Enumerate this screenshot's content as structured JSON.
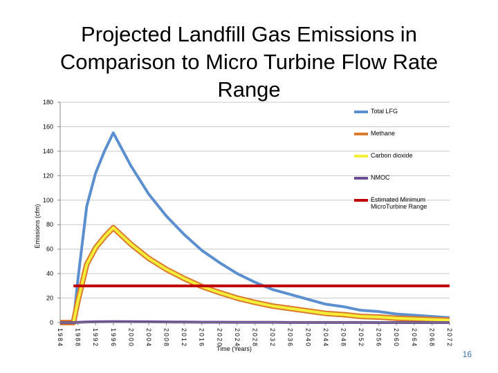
{
  "title": "Projected Landfill Gas Emissions in Comparison to Micro Turbine Flow Rate Range",
  "page_number": "16",
  "chart_data": {
    "type": "line",
    "y_label": "Emissions (cfm)",
    "x_label": "Time (Years)",
    "x": [
      1984,
      1987,
      1988,
      1990,
      1992,
      1994,
      1996,
      2000,
      2004,
      2008,
      2012,
      2016,
      2020,
      2024,
      2028,
      2032,
      2036,
      2040,
      2044,
      2048,
      2052,
      2056,
      2060,
      2064,
      2068,
      2072
    ],
    "series": [
      {
        "name": "Total LFG",
        "color": "#5b8fd0",
        "values": [
          0,
          0,
          35,
          95,
          122,
          140,
          155,
          128,
          105,
          87,
          72,
          59,
          49,
          40,
          33,
          27,
          23,
          19,
          15,
          13,
          10,
          9,
          7,
          6,
          5,
          4
        ]
      },
      {
        "name": "Methane",
        "color": "#d97b2b",
        "values": [
          0,
          0,
          17.5,
          47.5,
          61,
          70,
          77.5,
          64,
          52.5,
          43.5,
          36,
          29.5,
          24.5,
          20,
          16.5,
          13.5,
          11.5,
          9.5,
          7.5,
          6.5,
          5,
          4.5,
          3.5,
          3,
          2.5,
          2
        ]
      },
      {
        "name": "Carbon dioxide",
        "color": "#f5ef3a",
        "values": [
          0,
          0,
          17.5,
          47.5,
          61,
          70,
          77.5,
          64,
          52.5,
          43.5,
          36,
          29.5,
          24.5,
          20,
          16.5,
          13.5,
          11.5,
          9.5,
          7.5,
          6.5,
          5,
          4.5,
          3.5,
          3,
          2.5,
          2
        ]
      },
      {
        "name": "NMOC",
        "color": "#6a4c93",
        "values": [
          0,
          0,
          0.2,
          0.5,
          0.6,
          0.7,
          0.8,
          0.7,
          0.6,
          0.5,
          0.4,
          0.3,
          0.3,
          0.2,
          0.2,
          0.2,
          0.1,
          0.1,
          0.1,
          0.1,
          0.1,
          0,
          0,
          0,
          0,
          0
        ]
      },
      {
        "name": "Estimated Minimum MicroTurbine Range",
        "color": "#c00000",
        "values": [
          null,
          30,
          30,
          30,
          30,
          30,
          30,
          30,
          30,
          30,
          30,
          30,
          30,
          30,
          30,
          30,
          30,
          30,
          30,
          30,
          30,
          30,
          30,
          30,
          30,
          30
        ]
      }
    ],
    "xlim": [
      1984,
      2072
    ],
    "xticks": [
      1984,
      1988,
      1992,
      1996,
      2000,
      2004,
      2008,
      2012,
      2016,
      2020,
      2024,
      2028,
      2032,
      2036,
      2040,
      2044,
      2048,
      2052,
      2056,
      2060,
      2064,
      2068,
      2072
    ],
    "ylim": [
      0,
      180
    ],
    "yticks": [
      0,
      20,
      40,
      60,
      80,
      100,
      120,
      140,
      160,
      180
    ],
    "grid": true,
    "legend": "right"
  }
}
